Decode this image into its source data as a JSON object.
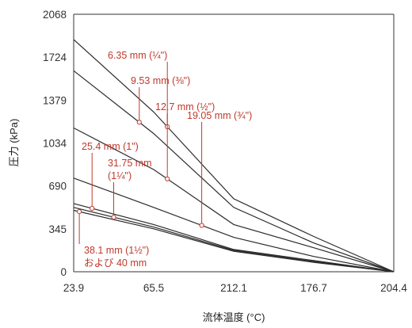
{
  "chart_data": {
    "type": "line",
    "title": "",
    "xlabel": "流体温度 (°C)",
    "ylabel": "圧力 (kPa)",
    "categories": [
      "23.9",
      "65.5",
      "212.1",
      "176.7",
      "204.4"
    ],
    "yticks": [
      "0",
      "345",
      "690",
      "1034",
      "1379",
      "1724",
      "2068"
    ],
    "ylim": [
      0,
      2068
    ],
    "grid": false,
    "series": [
      {
        "values": [
          1865,
          1283,
          586,
          283,
          0
        ]
      },
      {
        "values": [
          1614,
          1110,
          517,
          231,
          0
        ]
      },
      {
        "values": [
          1155,
          821,
          379,
          193,
          0
        ]
      },
      {
        "values": [
          752,
          517,
          276,
          123,
          0
        ]
      },
      {
        "values": [
          548,
          379,
          179,
          90,
          0
        ]
      },
      {
        "values": [
          517,
          359,
          172,
          83,
          0
        ]
      },
      {
        "values": [
          493,
          345,
          165,
          76,
          0
        ]
      }
    ],
    "annotations": [
      {
        "lines": [
          "6.35 mm (¼\")"
        ],
        "series": 0,
        "x": 1.17
      },
      {
        "lines": [
          "9.53 mm (⅜\")"
        ],
        "series": 1,
        "x": 0.82
      },
      {
        "lines": [
          "12.7 mm (½\")"
        ],
        "series": 2,
        "x": 1.17
      },
      {
        "lines": [
          "19.05 mm (¾\")"
        ],
        "series": 3,
        "x": 1.6
      },
      {
        "lines": [
          "25.4 mm (1\")"
        ],
        "series": 4,
        "x": 0.23
      },
      {
        "lines": [
          "31.75 mm",
          "(1¼\")"
        ],
        "series": 5,
        "x": 0.5
      },
      {
        "lines": [
          "38.1 mm (1½\")",
          "および 40 mm"
        ],
        "series": 6,
        "x": 0.07
      }
    ]
  }
}
